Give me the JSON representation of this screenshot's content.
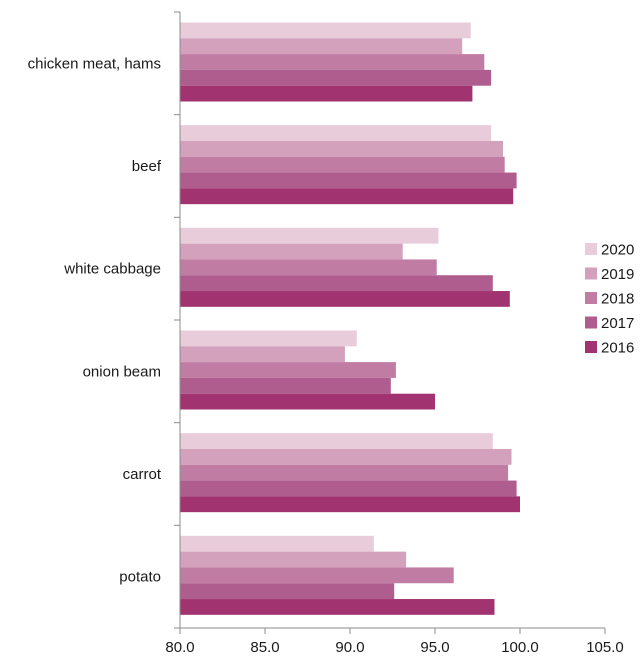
{
  "chart_data": {
    "type": "bar",
    "orientation": "horizontal",
    "categories": [
      "chicken meat, hams",
      "beef",
      "white cabbage",
      "onion beam",
      "carrot",
      "potato"
    ],
    "series": [
      {
        "name": "2020",
        "color": "#E8CCDA",
        "values": [
          97.1,
          98.3,
          95.2,
          90.4,
          98.4,
          91.4
        ]
      },
      {
        "name": "2019",
        "color": "#D3A1BC",
        "values": [
          96.6,
          99.0,
          93.1,
          89.7,
          99.5,
          93.3
        ]
      },
      {
        "name": "2018",
        "color": "#C07CA3",
        "values": [
          97.9,
          99.1,
          95.1,
          92.7,
          99.3,
          96.1
        ]
      },
      {
        "name": "2017",
        "color": "#AF5D8E",
        "values": [
          98.3,
          99.8,
          98.4,
          92.4,
          99.8,
          92.6
        ]
      },
      {
        "name": "2016",
        "color": "#A23371",
        "values": [
          97.2,
          99.6,
          99.4,
          95.0,
          100.0,
          98.5
        ]
      }
    ],
    "xlim": [
      80.0,
      105.0
    ],
    "xticks": [
      "80.0",
      "85.0",
      "90.0",
      "95.0",
      "100.0",
      "105.0"
    ],
    "title": "",
    "xlabel": "",
    "ylabel": "",
    "grid": false,
    "legend_position": "right"
  }
}
